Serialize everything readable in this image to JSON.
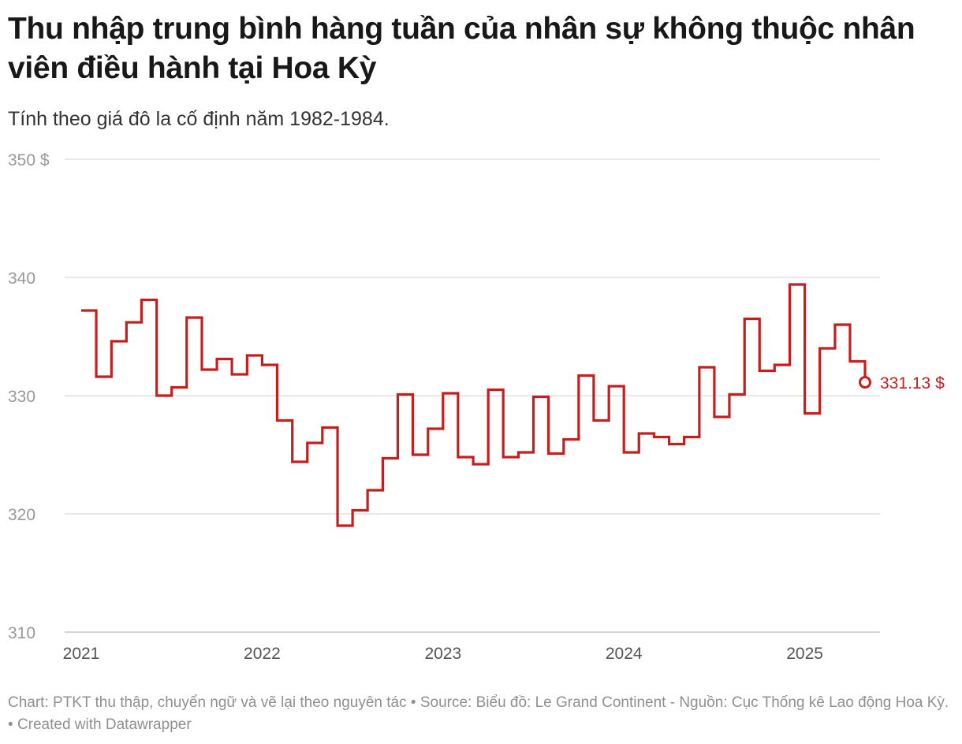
{
  "title": "Thu nhập trung bình hàng tuần của nhân sự không thuộc nhân viên điều hành tại Hoa Kỳ",
  "subtitle": "Tính theo giá đô la cố định năm 1982-1984.",
  "footer": {
    "chart_credit": "Chart: PTKT thu thập, chuyển ngữ và vẽ lại theo nguyên tác",
    "separator": "•",
    "source": "Source: Biểu đồ: Le Grand Continent - Nguồn: Cục Thống kê Lao động Hoa Kỳ.",
    "created": "Created with Datawrapper"
  },
  "colors": {
    "line": "#c71e1d",
    "grid": "#e0e0e0",
    "axis_text": "#999999",
    "year_text": "#555555"
  },
  "chart_data": {
    "type": "line",
    "interpolation": "step",
    "title": "Thu nhập trung bình hàng tuần của nhân sự không thuộc nhân viên điều hành tại Hoa Kỳ",
    "subtitle": "Tính theo giá đô la cố định năm 1982-1984.",
    "xlabel": "",
    "ylabel": "",
    "ylim": [
      310,
      350
    ],
    "xlim": [
      2021.0,
      2025.5
    ],
    "yticks": [
      {
        "value": 350,
        "label": "350 $"
      },
      {
        "value": 340,
        "label": "340"
      },
      {
        "value": 330,
        "label": "330"
      },
      {
        "value": 320,
        "label": "320"
      },
      {
        "value": 310,
        "label": "310"
      }
    ],
    "xticks": [
      {
        "value": 2021,
        "label": "2021"
      },
      {
        "value": 2022,
        "label": "2022"
      },
      {
        "value": 2023,
        "label": "2023"
      },
      {
        "value": 2024,
        "label": "2024"
      },
      {
        "value": 2025,
        "label": "2025"
      }
    ],
    "grid": true,
    "series": [
      {
        "name": "Thu nhập trung bình hàng tuần",
        "x": [
          2021.0,
          2021.083,
          2021.167,
          2021.25,
          2021.333,
          2021.417,
          2021.5,
          2021.583,
          2021.667,
          2021.75,
          2021.833,
          2021.917,
          2022.0,
          2022.083,
          2022.167,
          2022.25,
          2022.333,
          2022.417,
          2022.5,
          2022.583,
          2022.667,
          2022.75,
          2022.833,
          2022.917,
          2023.0,
          2023.083,
          2023.167,
          2023.25,
          2023.333,
          2023.417,
          2023.5,
          2023.583,
          2023.667,
          2023.75,
          2023.833,
          2023.917,
          2024.0,
          2024.083,
          2024.167,
          2024.25,
          2024.333,
          2024.417,
          2024.5,
          2024.583,
          2024.667,
          2024.75,
          2024.833,
          2024.917,
          2025.0,
          2025.083,
          2025.167,
          2025.25,
          2025.333
        ],
        "values": [
          337.2,
          331.6,
          334.6,
          336.2,
          338.1,
          330.0,
          330.7,
          336.6,
          332.2,
          333.1,
          331.8,
          333.4,
          332.6,
          327.9,
          324.4,
          326.0,
          327.3,
          319.0,
          320.3,
          322.0,
          324.7,
          330.1,
          325.0,
          327.2,
          330.2,
          324.8,
          324.2,
          330.5,
          324.8,
          325.2,
          329.9,
          325.1,
          326.3,
          331.7,
          327.9,
          330.8,
          325.2,
          326.8,
          326.5,
          325.9,
          326.5,
          332.4,
          328.2,
          330.1,
          336.5,
          332.1,
          332.6,
          339.4,
          328.5,
          334.0,
          336.0,
          332.9,
          331.13
        ],
        "last_label": "331.13 $"
      }
    ]
  }
}
